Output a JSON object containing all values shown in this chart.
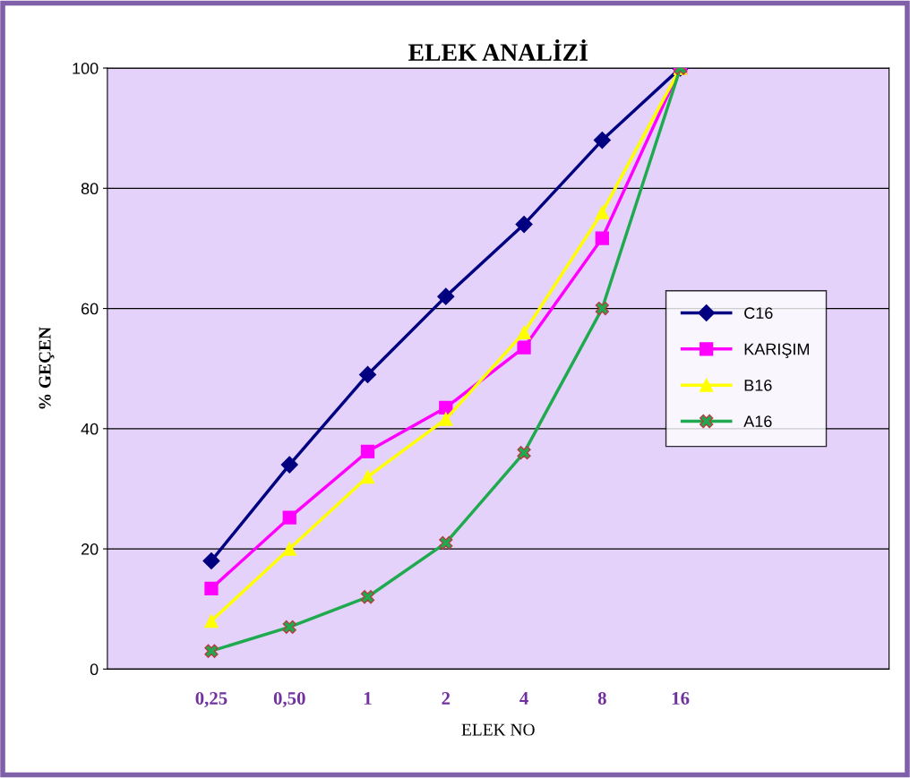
{
  "chart_data": {
    "type": "line",
    "title": "ELEK ANALİZİ",
    "xlabel": "ELEK NO",
    "ylabel": "% GEÇEN",
    "categories": [
      "0,25",
      "0,50",
      "1",
      "2",
      "4",
      "8",
      "16"
    ],
    "ylim": [
      0,
      100
    ],
    "yticks": [
      0,
      20,
      40,
      60,
      80,
      100
    ],
    "grid": "y",
    "legend": "right",
    "series": [
      {
        "name": "C16",
        "color": "#000080",
        "marker": "diamond",
        "values": [
          18,
          34,
          49,
          62,
          74,
          88,
          100
        ]
      },
      {
        "name": "KARIŞIM",
        "color": "#ff00ff",
        "marker": "square",
        "values": [
          13.4,
          25.2,
          36.2,
          43.5,
          53.5,
          71.7,
          100
        ]
      },
      {
        "name": "B16",
        "color": "#ffff00",
        "marker": "triangle",
        "values": [
          8,
          20,
          32,
          41.6,
          56,
          76,
          100
        ]
      },
      {
        "name": "A16",
        "color": "#1faa4f",
        "marker": "cross",
        "values": [
          3,
          7,
          12,
          21,
          36,
          60,
          100
        ]
      }
    ]
  }
}
